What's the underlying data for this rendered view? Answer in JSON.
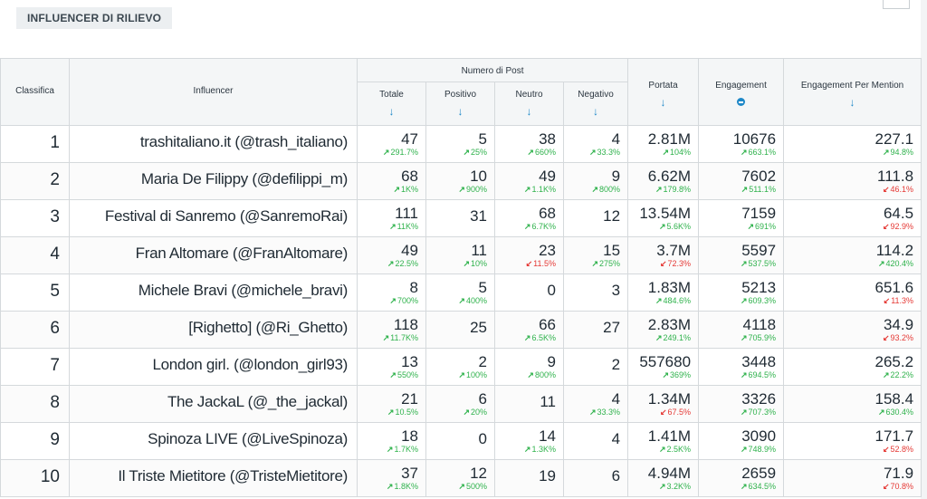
{
  "section_title": "INFLUENCER DI RILIEVO",
  "columns": {
    "rank": "Classifica",
    "influencer": "Influencer",
    "posts_group": "Numero di Post",
    "totale": "Totale",
    "positivo": "Positivo",
    "neutro": "Neutro",
    "negativo": "Negativo",
    "portata": "Portata",
    "engagement": "Engagement",
    "engagement_per_mention": "Engagement Per Mention"
  },
  "sort_arrow": "↓",
  "arrow_up": "↗",
  "arrow_down": "↙",
  "colors": {
    "up": "#2fb24c",
    "down": "#e53935",
    "accent": "#1e88c8"
  },
  "rows": [
    {
      "rank": "1",
      "name": "trashitaliano.it (@trash_italiano)",
      "totale": {
        "v": "47",
        "d": "291.7%",
        "t": "up"
      },
      "positivo": {
        "v": "5",
        "d": "25%",
        "t": "up"
      },
      "neutro": {
        "v": "38",
        "d": "660%",
        "t": "up"
      },
      "negativo": {
        "v": "4",
        "d": "33.3%",
        "t": "up"
      },
      "portata": {
        "v": "2.81M",
        "d": "104%",
        "t": "up"
      },
      "engagement": {
        "v": "10676",
        "d": "663.1%",
        "t": "up"
      },
      "epm": {
        "v": "227.1",
        "d": "94.8%",
        "t": "up"
      }
    },
    {
      "rank": "2",
      "name": "Maria De Filippy (@defilippi_m)",
      "totale": {
        "v": "68",
        "d": "1K%",
        "t": "up"
      },
      "positivo": {
        "v": "10",
        "d": "900%",
        "t": "up"
      },
      "neutro": {
        "v": "49",
        "d": "1.1K%",
        "t": "up"
      },
      "negativo": {
        "v": "9",
        "d": "800%",
        "t": "up"
      },
      "portata": {
        "v": "6.62M",
        "d": "179.8%",
        "t": "up"
      },
      "engagement": {
        "v": "7602",
        "d": "511.1%",
        "t": "up"
      },
      "epm": {
        "v": "111.8",
        "d": "46.1%",
        "t": "down"
      }
    },
    {
      "rank": "3",
      "name": "Festival di Sanremo (@SanremoRai)",
      "totale": {
        "v": "111",
        "d": "11K%",
        "t": "up"
      },
      "positivo": {
        "v": "31",
        "d": "",
        "t": ""
      },
      "neutro": {
        "v": "68",
        "d": "6.7K%",
        "t": "up"
      },
      "negativo": {
        "v": "12",
        "d": "",
        "t": ""
      },
      "portata": {
        "v": "13.54M",
        "d": "5.6K%",
        "t": "up"
      },
      "engagement": {
        "v": "7159",
        "d": "691%",
        "t": "up"
      },
      "epm": {
        "v": "64.5",
        "d": "92.9%",
        "t": "down"
      }
    },
    {
      "rank": "4",
      "name": "Fran Altomare (@FranAltomare)",
      "totale": {
        "v": "49",
        "d": "22.5%",
        "t": "up"
      },
      "positivo": {
        "v": "11",
        "d": "10%",
        "t": "up"
      },
      "neutro": {
        "v": "23",
        "d": "11.5%",
        "t": "down"
      },
      "negativo": {
        "v": "15",
        "d": "275%",
        "t": "up"
      },
      "portata": {
        "v": "3.7M",
        "d": "72.3%",
        "t": "down"
      },
      "engagement": {
        "v": "5597",
        "d": "537.5%",
        "t": "up"
      },
      "epm": {
        "v": "114.2",
        "d": "420.4%",
        "t": "up"
      }
    },
    {
      "rank": "5",
      "name": "Michele Bravi (@michele_bravi)",
      "totale": {
        "v": "8",
        "d": "700%",
        "t": "up"
      },
      "positivo": {
        "v": "5",
        "d": "400%",
        "t": "up"
      },
      "neutro": {
        "v": "0",
        "d": "",
        "t": ""
      },
      "negativo": {
        "v": "3",
        "d": "",
        "t": ""
      },
      "portata": {
        "v": "1.83M",
        "d": "484.6%",
        "t": "up"
      },
      "engagement": {
        "v": "5213",
        "d": "609.3%",
        "t": "up"
      },
      "epm": {
        "v": "651.6",
        "d": "11.3%",
        "t": "down"
      }
    },
    {
      "rank": "6",
      "name": "[Righetto] (@Ri_Ghetto)",
      "totale": {
        "v": "118",
        "d": "11.7K%",
        "t": "up"
      },
      "positivo": {
        "v": "25",
        "d": "",
        "t": ""
      },
      "neutro": {
        "v": "66",
        "d": "6.5K%",
        "t": "up"
      },
      "negativo": {
        "v": "27",
        "d": "",
        "t": ""
      },
      "portata": {
        "v": "2.83M",
        "d": "249.1%",
        "t": "up"
      },
      "engagement": {
        "v": "4118",
        "d": "705.9%",
        "t": "up"
      },
      "epm": {
        "v": "34.9",
        "d": "93.2%",
        "t": "down"
      }
    },
    {
      "rank": "7",
      "name": "London girl. (@london_girl93)",
      "totale": {
        "v": "13",
        "d": "550%",
        "t": "up"
      },
      "positivo": {
        "v": "2",
        "d": "100%",
        "t": "up"
      },
      "neutro": {
        "v": "9",
        "d": "800%",
        "t": "up"
      },
      "negativo": {
        "v": "2",
        "d": "",
        "t": ""
      },
      "portata": {
        "v": "557680",
        "d": "369%",
        "t": "up"
      },
      "engagement": {
        "v": "3448",
        "d": "694.5%",
        "t": "up"
      },
      "epm": {
        "v": "265.2",
        "d": "22.2%",
        "t": "up"
      }
    },
    {
      "rank": "8",
      "name": "The JackaL (@_the_jackal)",
      "totale": {
        "v": "21",
        "d": "10.5%",
        "t": "up"
      },
      "positivo": {
        "v": "6",
        "d": "20%",
        "t": "up"
      },
      "neutro": {
        "v": "11",
        "d": "",
        "t": ""
      },
      "negativo": {
        "v": "4",
        "d": "33.3%",
        "t": "up"
      },
      "portata": {
        "v": "1.34M",
        "d": "67.5%",
        "t": "down"
      },
      "engagement": {
        "v": "3326",
        "d": "707.3%",
        "t": "up"
      },
      "epm": {
        "v": "158.4",
        "d": "630.4%",
        "t": "up"
      }
    },
    {
      "rank": "9",
      "name": "Spinoza LIVE (@LiveSpinoza)",
      "totale": {
        "v": "18",
        "d": "1.7K%",
        "t": "up"
      },
      "positivo": {
        "v": "0",
        "d": "",
        "t": ""
      },
      "neutro": {
        "v": "14",
        "d": "1.3K%",
        "t": "up"
      },
      "negativo": {
        "v": "4",
        "d": "",
        "t": ""
      },
      "portata": {
        "v": "1.41M",
        "d": "2.5K%",
        "t": "up"
      },
      "engagement": {
        "v": "3090",
        "d": "748.9%",
        "t": "up"
      },
      "epm": {
        "v": "171.7",
        "d": "52.8%",
        "t": "down"
      }
    },
    {
      "rank": "10",
      "name": "Il Triste Mietitore (@TristeMietitore)",
      "totale": {
        "v": "37",
        "d": "1.8K%",
        "t": "up"
      },
      "positivo": {
        "v": "12",
        "d": "500%",
        "t": "up"
      },
      "neutro": {
        "v": "19",
        "d": "",
        "t": ""
      },
      "negativo": {
        "v": "6",
        "d": "",
        "t": ""
      },
      "portata": {
        "v": "4.94M",
        "d": "3.2K%",
        "t": "up"
      },
      "engagement": {
        "v": "2659",
        "d": "634.5%",
        "t": "up"
      },
      "epm": {
        "v": "71.9",
        "d": "70.8%",
        "t": "down"
      }
    }
  ]
}
